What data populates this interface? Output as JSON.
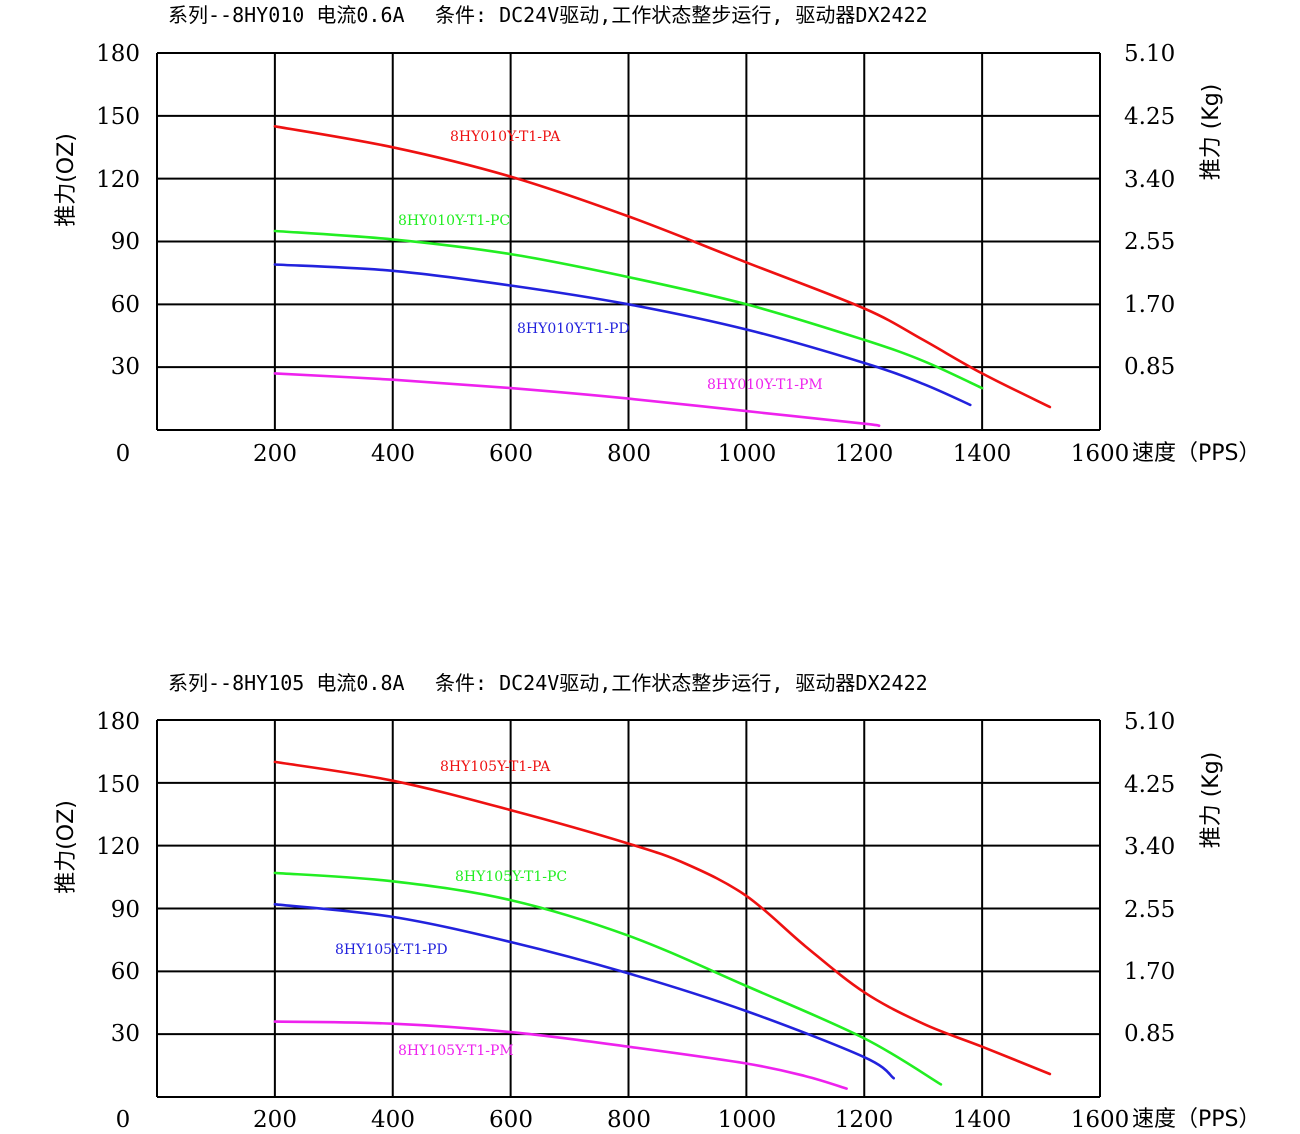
{
  "chart_data": [
    {
      "type": "line",
      "title": "系列--8HY010 电流0.6A",
      "subtitle": "条件: DC24V驱动,工作状态整步运行, 驱动器DX2422",
      "xlabel": "速度（PPS）",
      "ylabel": "推力(OZ)",
      "ylabel_right": "推力 (Kg)",
      "xlim": [
        0,
        1600
      ],
      "ylim": [
        0,
        180
      ],
      "x_ticks": [
        "0",
        "200",
        "400",
        "600",
        "800",
        "1000",
        "1200",
        "1400",
        "1600"
      ],
      "y_ticks": [
        "30",
        "60",
        "90",
        "120",
        "150",
        "180"
      ],
      "y_ticks_right": [
        "0.85",
        "1.70",
        "2.55",
        "3.40",
        "4.25",
        "5.10"
      ],
      "grid": true,
      "series": [
        {
          "name": "8HY010Y-T1-PA",
          "color": "#ee1111",
          "x": [
            200,
            400,
            600,
            800,
            1000,
            1200,
            1300,
            1400,
            1515
          ],
          "y": [
            145,
            135,
            121,
            102,
            80,
            58,
            43,
            27,
            11
          ]
        },
        {
          "name": "8HY010Y-T1-PC",
          "color": "#22ee22",
          "x": [
            200,
            400,
            600,
            800,
            1000,
            1200,
            1300,
            1400
          ],
          "y": [
            95,
            91,
            84,
            73,
            60,
            43,
            33,
            20
          ]
        },
        {
          "name": "8HY010Y-T1-PD",
          "color": "#2222dd",
          "x": [
            200,
            400,
            600,
            800,
            1000,
            1200,
            1300,
            1380
          ],
          "y": [
            79,
            76,
            69,
            60,
            48,
            32,
            22,
            12
          ]
        },
        {
          "name": "8HY010Y-T1-PM",
          "color": "#ee22ee",
          "x": [
            200,
            400,
            600,
            800,
            1000,
            1200,
            1225
          ],
          "y": [
            27,
            24,
            20,
            15,
            9,
            3,
            2
          ]
        }
      ]
    },
    {
      "type": "line",
      "title": "系列--8HY105 电流0.8A",
      "subtitle": "条件: DC24V驱动,工作状态整步运行, 驱动器DX2422",
      "xlabel": "速度（PPS）",
      "ylabel": "推力(OZ)",
      "ylabel_right": "推力 (Kg)",
      "xlim": [
        0,
        1600
      ],
      "ylim": [
        0,
        180
      ],
      "x_ticks": [
        "0",
        "200",
        "400",
        "600",
        "800",
        "1000",
        "1200",
        "1400",
        "1600"
      ],
      "y_ticks": [
        "30",
        "60",
        "90",
        "120",
        "150",
        "180"
      ],
      "y_ticks_right": [
        "0.85",
        "1.70",
        "2.55",
        "3.40",
        "4.25",
        "5.10"
      ],
      "grid": true,
      "series": [
        {
          "name": "8HY105Y-T1-PA",
          "color": "#ee1111",
          "x": [
            200,
            400,
            600,
            800,
            900,
            1000,
            1100,
            1200,
            1300,
            1400,
            1515
          ],
          "y": [
            160,
            151,
            137,
            121,
            111,
            96,
            72,
            50,
            35,
            24,
            11
          ]
        },
        {
          "name": "8HY105Y-T1-PC",
          "color": "#22ee22",
          "x": [
            200,
            400,
            600,
            800,
            1000,
            1200,
            1330
          ],
          "y": [
            107,
            103,
            94,
            77,
            53,
            28,
            6
          ]
        },
        {
          "name": "8HY105Y-T1-PD",
          "color": "#2222dd",
          "x": [
            200,
            400,
            600,
            800,
            1000,
            1200,
            1250
          ],
          "y": [
            92,
            86,
            74,
            59,
            41,
            19,
            9
          ]
        },
        {
          "name": "8HY105Y-T1-PM",
          "color": "#ee22ee",
          "x": [
            200,
            400,
            600,
            800,
            1000,
            1100,
            1170
          ],
          "y": [
            36,
            35,
            31,
            24,
            16,
            10,
            4
          ]
        }
      ]
    }
  ]
}
